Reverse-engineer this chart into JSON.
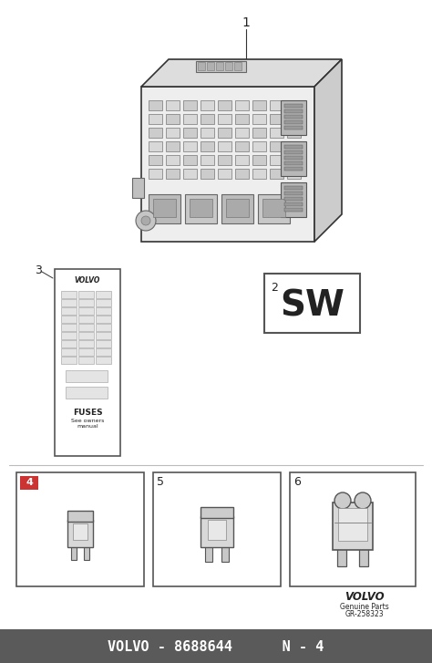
{
  "bg_color": "#f0f0f0",
  "main_bg": "#ffffff",
  "footer_bg": "#5a5a5a",
  "footer_text": "VOLVO - 8688644      N - 4",
  "footer_color": "#ffffff",
  "volvo_text": "VOLVO",
  "genuine_parts": "Genuine Parts",
  "gr_number": "GR-258323",
  "part1_label": "1",
  "part2_label": "2",
  "part2_text": "SW",
  "part3_label": "3",
  "part3_fuses_text": "FUSES",
  "part3_subtext": "See owners manual",
  "part4_label": "4",
  "part5_label": "5",
  "part6_label": "6",
  "highlight_red": "#cc3333",
  "box_border": "#555555",
  "line_color": "#333333",
  "text_color": "#222222",
  "light_gray": "#aaaaaa",
  "mid_gray": "#888888",
  "dark_gray": "#444444"
}
